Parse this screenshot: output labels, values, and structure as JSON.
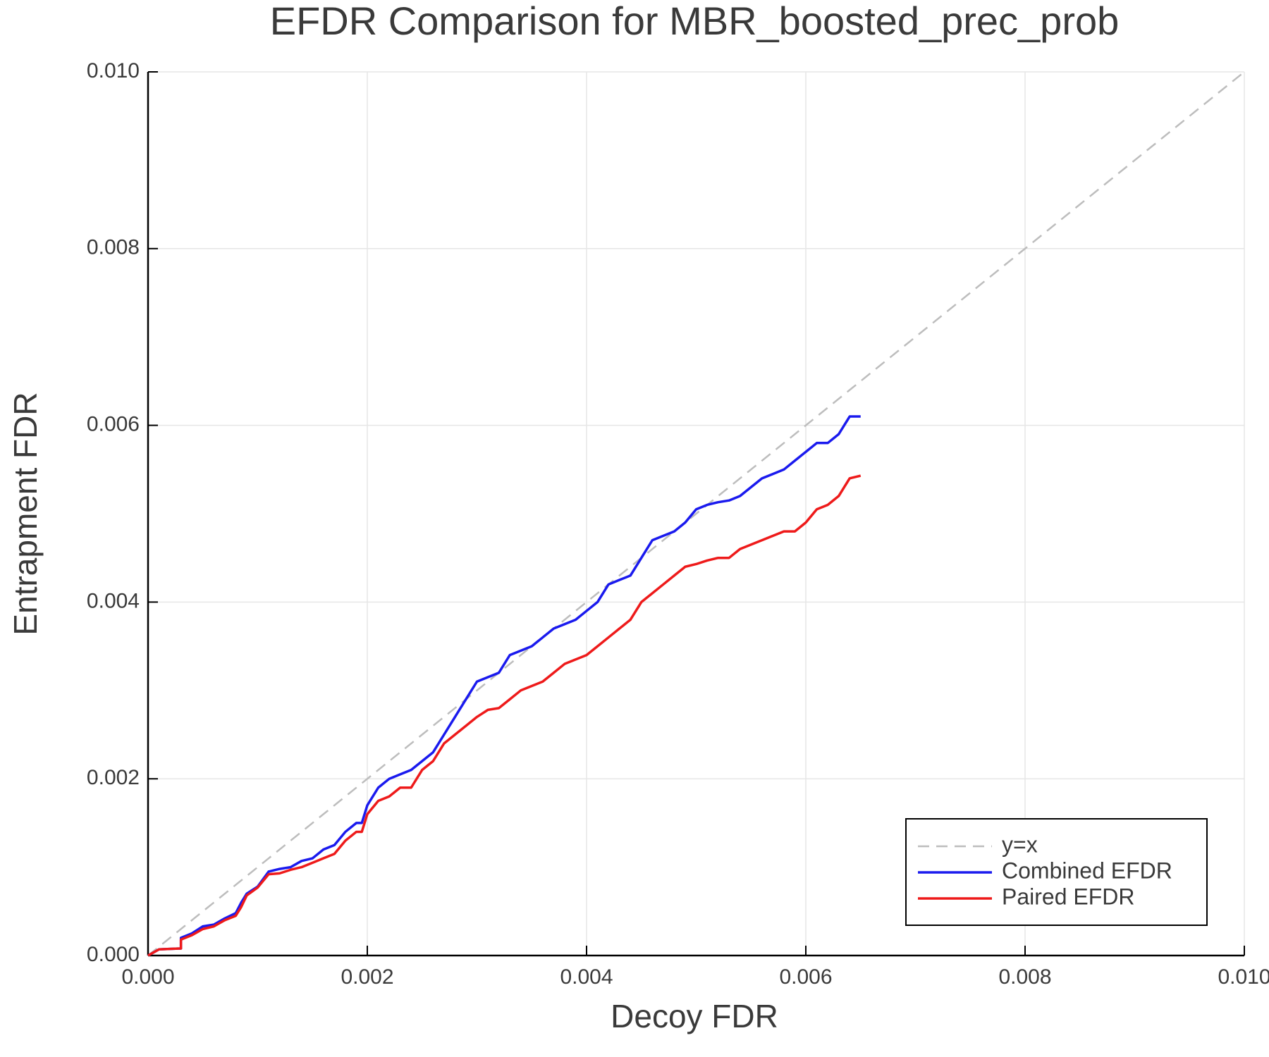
{
  "chart_data": {
    "type": "line",
    "title": "EFDR Comparison for MBR_boosted_prec_prob",
    "x_label": "Decoy FDR",
    "y_label": "Entrapment FDR",
    "xlim": [
      0,
      0.01
    ],
    "ylim": [
      0,
      0.01
    ],
    "xticks": [
      {
        "value": 0,
        "label": "0.000"
      },
      {
        "value": 0.002,
        "label": "0.002"
      },
      {
        "value": 0.004,
        "label": "0.004"
      },
      {
        "value": 0.006,
        "label": "0.006"
      },
      {
        "value": 0.008,
        "label": "0.008"
      },
      {
        "value": 0.01,
        "label": "0.010"
      }
    ],
    "yticks": [
      {
        "value": 0,
        "label": "0.000"
      },
      {
        "value": 0.002,
        "label": "0.002"
      },
      {
        "value": 0.004,
        "label": "0.004"
      },
      {
        "value": 0.006,
        "label": "0.006"
      },
      {
        "value": 0.008,
        "label": "0.008"
      },
      {
        "value": 0.01,
        "label": "0.010"
      }
    ],
    "grid": true,
    "legend": "bottom-right",
    "series": [
      {
        "name": "y=x",
        "color": "#bdbdbd",
        "dashed": true,
        "x": [
          0,
          0.01
        ],
        "values": [
          0,
          0.01
        ]
      },
      {
        "name": "Combined EFDR",
        "color": "#1a1aee",
        "x": [
          0,
          0.0001,
          0.0003,
          0.0003,
          0.0004,
          0.0005,
          0.0006,
          0.0007,
          0.0008,
          0.00085,
          0.0009,
          0.001,
          0.0011,
          0.0012,
          0.0013,
          0.0014,
          0.0015,
          0.0016,
          0.0017,
          0.0018,
          0.0019,
          0.00195,
          0.002,
          0.0021,
          0.0022,
          0.0023,
          0.0024,
          0.0025,
          0.0026,
          0.0027,
          0.0028,
          0.0029,
          0.003,
          0.0031,
          0.0032,
          0.0033,
          0.0034,
          0.0035,
          0.0036,
          0.0037,
          0.0038,
          0.0039,
          0.004,
          0.0041,
          0.0042,
          0.0043,
          0.0044,
          0.0045,
          0.0046,
          0.0047,
          0.0048,
          0.0049,
          0.005,
          0.0051,
          0.0052,
          0.0053,
          0.0054,
          0.0055,
          0.0056,
          0.0057,
          0.0058,
          0.0059,
          0.006,
          0.0061,
          0.0062,
          0.0063,
          0.0064,
          0.0065
        ],
        "values": [
          0,
          7e-05,
          8e-05,
          0.0002,
          0.00025,
          0.00033,
          0.00035,
          0.00042,
          0.00048,
          0.0006,
          0.0007,
          0.00078,
          0.00095,
          0.00098,
          0.001,
          0.00107,
          0.0011,
          0.0012,
          0.00125,
          0.0014,
          0.0015,
          0.0015,
          0.0017,
          0.0019,
          0.002,
          0.00205,
          0.0021,
          0.0022,
          0.0023,
          0.0025,
          0.0027,
          0.0029,
          0.0031,
          0.00315,
          0.0032,
          0.0034,
          0.00345,
          0.0035,
          0.0036,
          0.0037,
          0.00375,
          0.0038,
          0.0039,
          0.004,
          0.0042,
          0.00425,
          0.0043,
          0.0045,
          0.0047,
          0.00475,
          0.0048,
          0.0049,
          0.00505,
          0.0051,
          0.00513,
          0.00515,
          0.0052,
          0.0053,
          0.0054,
          0.00545,
          0.0055,
          0.0056,
          0.0057,
          0.0058,
          0.0058,
          0.0059,
          0.0061,
          0.0061
        ]
      },
      {
        "name": "Paired EFDR",
        "color": "#ee1a1a",
        "x": [
          0,
          0.0001,
          0.0003,
          0.0003,
          0.0004,
          0.0005,
          0.0006,
          0.0007,
          0.0008,
          0.00085,
          0.0009,
          0.001,
          0.0011,
          0.0012,
          0.0013,
          0.0014,
          0.0015,
          0.0016,
          0.0017,
          0.0018,
          0.0019,
          0.00195,
          0.002,
          0.0021,
          0.0022,
          0.0023,
          0.0024,
          0.0025,
          0.0026,
          0.0027,
          0.0028,
          0.0029,
          0.003,
          0.0031,
          0.0032,
          0.0033,
          0.0034,
          0.0035,
          0.0036,
          0.0037,
          0.0038,
          0.0039,
          0.004,
          0.0041,
          0.0042,
          0.0043,
          0.0044,
          0.0045,
          0.0046,
          0.0047,
          0.0048,
          0.0049,
          0.005,
          0.0051,
          0.0052,
          0.0053,
          0.0054,
          0.0055,
          0.0056,
          0.0057,
          0.0058,
          0.0059,
          0.006,
          0.0061,
          0.0062,
          0.0063,
          0.0064,
          0.0065
        ],
        "values": [
          0,
          7e-05,
          8e-05,
          0.00018,
          0.00023,
          0.0003,
          0.00033,
          0.0004,
          0.00045,
          0.00055,
          0.00068,
          0.00077,
          0.00092,
          0.00093,
          0.00097,
          0.001,
          0.00105,
          0.0011,
          0.00115,
          0.0013,
          0.0014,
          0.0014,
          0.0016,
          0.00175,
          0.0018,
          0.0019,
          0.0019,
          0.0021,
          0.0022,
          0.0024,
          0.0025,
          0.0026,
          0.0027,
          0.00278,
          0.0028,
          0.0029,
          0.003,
          0.00305,
          0.0031,
          0.0032,
          0.0033,
          0.00335,
          0.0034,
          0.0035,
          0.0036,
          0.0037,
          0.0038,
          0.004,
          0.0041,
          0.0042,
          0.0043,
          0.0044,
          0.00443,
          0.00447,
          0.0045,
          0.0045,
          0.0046,
          0.00465,
          0.0047,
          0.00475,
          0.0048,
          0.0048,
          0.0049,
          0.00505,
          0.0051,
          0.0052,
          0.0054,
          0.00543
        ]
      }
    ]
  }
}
